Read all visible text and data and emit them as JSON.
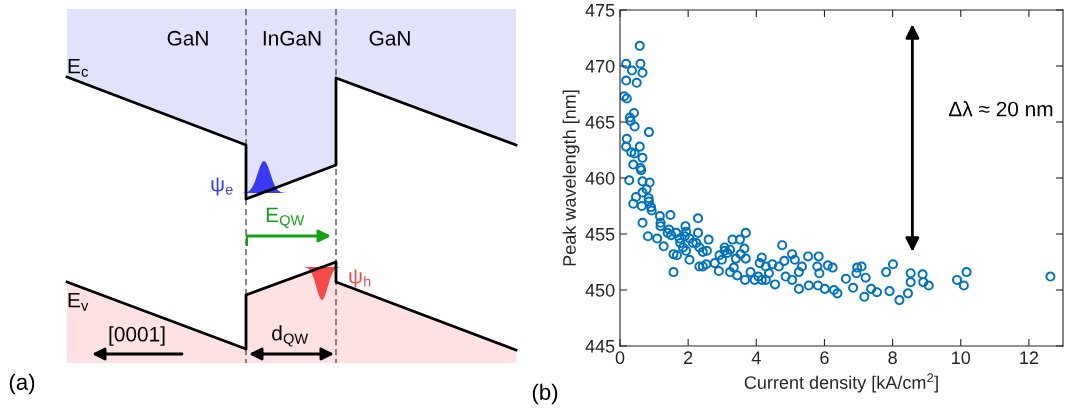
{
  "chart_data": [
    {
      "type": "other",
      "annotations": [
        "GaN",
        "InGaN",
        "GaN",
        "E$_{c}$",
        "E$_{v}$",
        "ψ$_{e}$",
        "E$_{QW}$",
        "ψ$_{h}$",
        "[0001]",
        "d$_{QW}$",
        "(a)"
      ]
    },
    {
      "type": "scatter",
      "xlabel": "Current density [kA/cm$^{2}$]",
      "ylabel": "Peak wavelength [nm]",
      "xlim": [
        0,
        13
      ],
      "ylim": [
        445,
        475
      ],
      "xticks": [
        0,
        2,
        4,
        6,
        8,
        10,
        12
      ],
      "yticks": [
        445,
        450,
        455,
        460,
        465,
        470,
        475
      ],
      "grid": false,
      "legend": false,
      "marker": "circle",
      "annotations": [
        "Δλ ≈ 20 nm",
        "(b)"
      ],
      "series": [
        {
          "color": "#0072bd",
          "x": [
            0.58,
            0.18,
            0.6,
            0.35,
            0.66,
            0.18,
            0.49,
            0.12,
            0.2,
            0.41,
            0.29,
            0.31,
            0.43,
            0.85,
            0.2,
            0.18,
            0.58,
            0.33,
            0.43,
            0.66,
            0.39,
            0.6,
            0.62,
            0.27,
            0.66,
            0.87,
            0.78,
            0.66,
            0.47,
            0.84,
            0.85,
            0.39,
            0.64,
            0.91,
            0.93,
            0.66,
            1.17,
            1.48,
            1.19,
            1.19,
            0.82,
            1.09,
            1.28,
            1.44,
            1.4,
            1.5,
            1.65,
            1.75,
            1.92,
            1.94,
            1.9,
            2.04,
            1.77,
            1.85,
            2.14,
            1.57,
            1.67,
            1.57,
            1.94,
            2.04,
            2.24,
            2.29,
            2.29,
            2.33,
            2.43,
            2.6,
            2.55,
            2.33,
            2.43,
            2.53,
            2.78,
            2.92,
            2.99,
            3.07,
            3.07,
            3.15,
            3.23,
            2.9,
            3.23,
            3.34,
            3.3,
            3.52,
            3.69,
            3.65,
            3.4,
            3.54,
            3.69,
            3.44,
            3.67,
            3.83,
            3.95,
            4.06,
            4.16,
            4.1,
            4.16,
            4.28,
            4.76,
            4.47,
            4.66,
            4.82,
            5.05,
            5.13,
            5.52,
            5.83,
            5.34,
            5.25,
            5.79,
            6.1,
            6.24,
            5.85,
            4.37,
            4.86,
            4.28,
            4.55,
            5.05,
            5.25,
            5.54,
            5.81,
            6.01,
            6.28,
            6.38,
            6.63,
            6.84,
            6.96,
            7.09,
            7.21,
            6.94,
            7.17,
            7.37,
            7.54,
            7.81,
            8.01,
            7.91,
            8.2,
            8.45,
            8.53,
            8.53,
            8.88,
            8.9,
            9.06,
            9.89,
            10.17,
            10.09,
            12.63
          ],
          "values": [
            471.8,
            470.2,
            470.2,
            469.6,
            469.4,
            468.7,
            468.5,
            467.3,
            467.1,
            465.8,
            465.4,
            465.1,
            464.6,
            464.1,
            463.5,
            462.8,
            462.8,
            462.3,
            462.2,
            461.8,
            461.2,
            460.9,
            460.7,
            459.8,
            459.7,
            459.6,
            459.0,
            458.7,
            458.3,
            458.2,
            457.9,
            457.7,
            457.5,
            457.4,
            457.1,
            456.0,
            456.6,
            456.7,
            456.0,
            455.7,
            454.8,
            454.6,
            453.9,
            455.4,
            455.1,
            454.9,
            455.1,
            454.6,
            455.7,
            455.2,
            454.8,
            454.6,
            454.2,
            453.8,
            454.2,
            453.2,
            453.1,
            451.6,
            453.5,
            452.7,
            454.2,
            456.4,
            455.1,
            453.8,
            453.4,
            454.5,
            453.5,
            452.1,
            452.1,
            452.3,
            452.4,
            453.1,
            452.7,
            453.5,
            453.8,
            453.3,
            453.6,
            451.7,
            451.6,
            452.0,
            454.5,
            454.5,
            455.1,
            453.7,
            452.8,
            453.2,
            452.8,
            451.3,
            450.9,
            451.6,
            450.9,
            451.2,
            452.9,
            452.4,
            450.9,
            452.1,
            454.0,
            452.3,
            452.1,
            452.6,
            453.2,
            452.7,
            453.0,
            453.0,
            452.1,
            451.6,
            452.1,
            452.2,
            452.0,
            451.5,
            451.5,
            451.2,
            450.9,
            450.5,
            450.9,
            450.1,
            450.4,
            450.4,
            450.1,
            450.0,
            449.7,
            451.0,
            450.2,
            452.0,
            452.1,
            451.1,
            451.5,
            449.4,
            450.1,
            449.8,
            451.6,
            452.3,
            449.9,
            449.1,
            449.7,
            451.5,
            450.7,
            451.4,
            450.7,
            450.4,
            450.9,
            451.6,
            450.4,
            451.2
          ]
        }
      ]
    }
  ]
}
